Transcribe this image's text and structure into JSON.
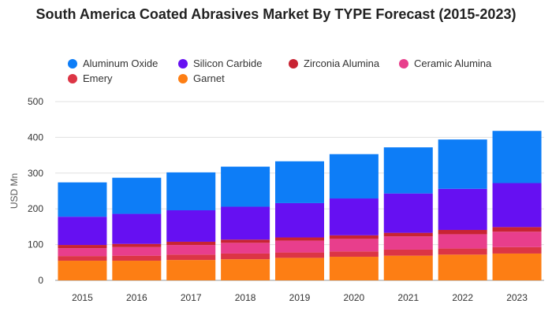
{
  "chart_data": {
    "type": "bar",
    "stacked": true,
    "title": "South America Coated Abrasives Market By TYPE Forecast (2015-2023)",
    "xlabel": "",
    "ylabel": "USD Mn",
    "ylim": [
      0,
      500
    ],
    "yticks": [
      0,
      100,
      200,
      300,
      400,
      500
    ],
    "grid": true,
    "legend_position": "top",
    "categories": [
      "2015",
      "2016",
      "2017",
      "2018",
      "2019",
      "2020",
      "2021",
      "2022",
      "2023"
    ],
    "series": [
      {
        "name": "Garnet",
        "color": "#fd7e14",
        "values": [
          55,
          55,
          57,
          59,
          63,
          66,
          69,
          72,
          75
        ]
      },
      {
        "name": "Emery",
        "color": "#dc3545",
        "values": [
          13,
          14,
          15,
          16,
          15,
          15,
          17,
          17,
          18
        ]
      },
      {
        "name": "Ceramic Alumina",
        "color": "#e83e8c",
        "values": [
          22,
          24,
          27,
          30,
          33,
          35,
          37,
          40,
          43
        ]
      },
      {
        "name": "Zirconia Alumina",
        "color": "#c82333",
        "values": [
          9,
          9,
          9,
          9,
          9,
          10,
          10,
          12,
          13
        ]
      },
      {
        "name": "Silicon Carbide",
        "color": "#6610f2",
        "values": [
          79,
          84,
          88,
          92,
          96,
          103,
          110,
          115,
          123
        ]
      },
      {
        "name": "Aluminum Oxide",
        "color": "#0d7df7",
        "values": [
          96,
          101,
          106,
          112,
          117,
          124,
          129,
          138,
          146
        ]
      }
    ],
    "legend_order": [
      "Aluminum Oxide",
      "Silicon Carbide",
      "Zirconia Alumina",
      "Ceramic Alumina",
      "Emery",
      "Garnet"
    ]
  }
}
